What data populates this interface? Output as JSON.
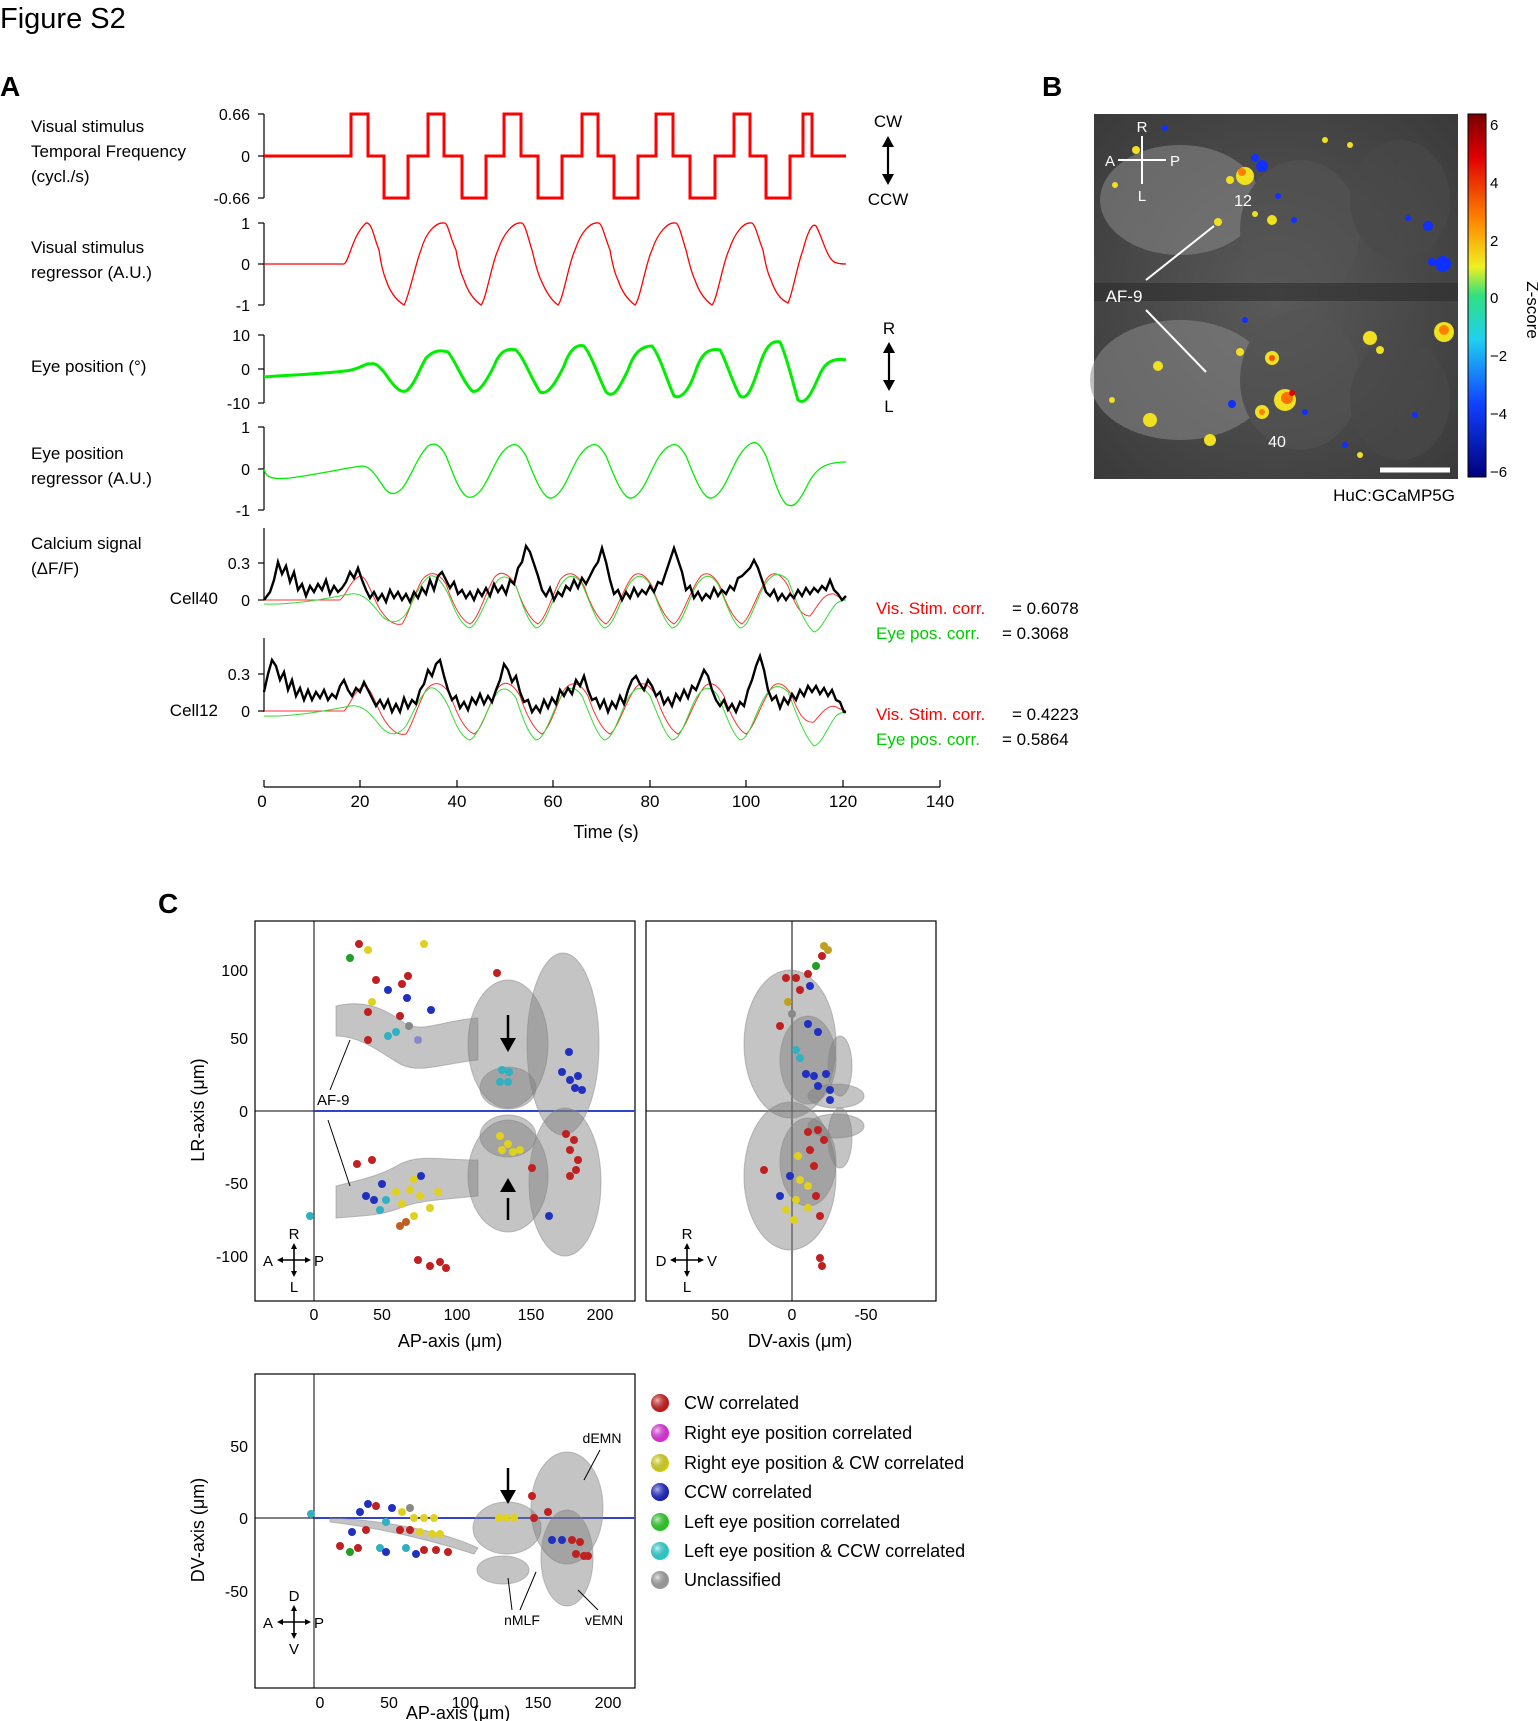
{
  "figure_title": "Figure S2",
  "panel_labels": {
    "a": "A",
    "b": "B",
    "c": "C"
  },
  "panel_a": {
    "rows": [
      {
        "label_lines": [
          "Visual stimulus",
          "Temporal Frequency",
          "(cycl./s)"
        ],
        "ticks": [
          "0.66",
          "0",
          "-0.66"
        ]
      },
      {
        "label_lines": [
          "Visual stimulus",
          "regressor (A.U.)"
        ],
        "ticks": [
          "1",
          "0",
          "-1"
        ]
      },
      {
        "label_lines": [
          "Eye position (°)"
        ],
        "ticks": [
          "10",
          "0",
          "-10"
        ]
      },
      {
        "label_lines": [
          "Eye position",
          "regressor (A.U.)"
        ],
        "ticks": [
          "1",
          "0",
          "-1"
        ]
      },
      {
        "label_lines": [
          "Calcium signal",
          "(ΔF/F)"
        ],
        "ticks": [
          "0.3",
          "0"
        ]
      }
    ],
    "cw_label": "CW",
    "ccw_label": "CCW",
    "r_label": "R",
    "l_label": "L",
    "cells": [
      {
        "name": "Cell40",
        "ticks": [
          "0.3",
          "0"
        ],
        "vis_label": "Vis. Stim. corr.",
        "vis_value": "= 0.6078",
        "eye_label": "Eye pos. corr.",
        "eye_value": "=  0.3068"
      },
      {
        "name": "Cell12",
        "ticks": [
          "0.3",
          "0"
        ],
        "vis_label": "Vis. Stim. corr.",
        "vis_value": "= 0.4223",
        "eye_label": "Eye pos. corr.",
        "eye_value": "=  0.5864"
      }
    ],
    "xaxis": {
      "ticks": [
        "0",
        "20",
        "40",
        "60",
        "80",
        "100",
        "120",
        "140"
      ],
      "label": "Time (s)"
    },
    "colors": {
      "stim": "#ff0000",
      "eye": "#00ee00",
      "calcium": "#000000"
    }
  },
  "panel_b": {
    "cell_labels": [
      "12",
      "40"
    ],
    "region_label": "AF-9",
    "orientation": {
      "r": "R",
      "l": "L",
      "a": "A",
      "p": "P"
    },
    "caption": "HuC:GCaMP5G",
    "colorbar": {
      "ticks": [
        "6",
        "4",
        "2",
        "0",
        "−2",
        "−4",
        "−6"
      ],
      "label": "Z-score"
    }
  },
  "panel_c": {
    "top_left": {
      "xlabel": "AP-axis (μm)",
      "ylabel": "LR-axis (μm)",
      "xticks": [
        "0",
        "50",
        "100",
        "150",
        "200"
      ],
      "yticks": [
        "100",
        "50",
        "0",
        "-50",
        "-100"
      ],
      "annotation": "AF-9",
      "compass": {
        "n": "R",
        "s": "L",
        "w": "A",
        "e": "P"
      }
    },
    "top_right": {
      "xlabel": "DV-axis (μm)",
      "xticks": [
        "50",
        "0",
        "-50"
      ],
      "compass": {
        "n": "R",
        "s": "L",
        "w": "D",
        "e": "V"
      }
    },
    "bottom": {
      "xlabel": "AP-axis (μm)",
      "ylabel": "DV-axis (μm)",
      "xticks": [
        "0",
        "50",
        "100",
        "150",
        "200"
      ],
      "yticks": [
        "50",
        "0",
        "-50"
      ],
      "annotations": [
        "dEMN",
        "nMLF",
        "vEMN"
      ],
      "compass": {
        "n": "D",
        "s": "V",
        "w": "A",
        "e": "P"
      }
    },
    "legend": [
      {
        "label": "CW correlated",
        "color": "#e8191a"
      },
      {
        "label": "Right eye position correlated",
        "color": "#ff33ff"
      },
      {
        "label": "Right eye position & CW correlated",
        "color": "#f5f218"
      },
      {
        "label": "CCW correlated",
        "color": "#1a22e0"
      },
      {
        "label": "Left eye position correlated",
        "color": "#2ee82a"
      },
      {
        "label": "Left eye position & CCW correlated",
        "color": "#2ef0f0"
      },
      {
        "label": "Unclassified",
        "color": "#b4b4b4"
      }
    ]
  }
}
